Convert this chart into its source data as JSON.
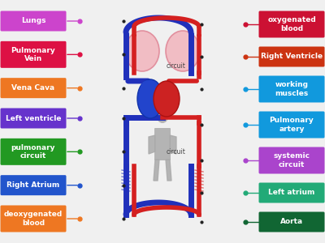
{
  "background_color": "#f0f0f0",
  "left_labels": [
    {
      "text": "Lungs",
      "color": "#cc44cc",
      "dot_color": "#cc44cc"
    },
    {
      "text": "Pulmonary\nVein",
      "color": "#dd1144",
      "dot_color": "#dd1144"
    },
    {
      "text": "Vena Cava",
      "color": "#ee7722",
      "dot_color": "#ee7722"
    },
    {
      "text": "Left ventricle",
      "color": "#6633cc",
      "dot_color": "#6633cc"
    },
    {
      "text": "pulmonary\ncircuit",
      "color": "#229922",
      "dot_color": "#229922"
    },
    {
      "text": "Right Atrium",
      "color": "#2255cc",
      "dot_color": "#2255cc"
    },
    {
      "text": "deoxygenated\nblood",
      "color": "#ee7722",
      "dot_color": "#ee7722"
    }
  ],
  "right_labels": [
    {
      "text": "oxygenated\nblood",
      "color": "#cc1133",
      "dot_color": "#cc1133"
    },
    {
      "text": "Right Ventricle",
      "color": "#cc3311",
      "dot_color": "#cc3311"
    },
    {
      "text": "working\nmuscles",
      "color": "#1199dd",
      "dot_color": "#1199dd"
    },
    {
      "text": "Pulmonary\nartery",
      "color": "#1199dd",
      "dot_color": "#1199dd"
    },
    {
      "text": "systemic\ncircuit",
      "color": "#aa44cc",
      "dot_color": "#aa44cc"
    },
    {
      "text": "Left atrium",
      "color": "#22aa77",
      "dot_color": "#22aa77"
    },
    {
      "text": "Aorta",
      "color": "#116633",
      "dot_color": "#116633"
    }
  ],
  "label_text_color": "#ffffff",
  "label_fontsize": 6.5,
  "label_fontweight": "bold",
  "circuit_label_top": "circuit",
  "circuit_label_bot": "circuit",
  "red": "#d42020",
  "blue": "#2030bb",
  "pink_lung": "#f2b8c0",
  "pink_lung_edge": "#e08898",
  "body_color": "#aaaaaa"
}
